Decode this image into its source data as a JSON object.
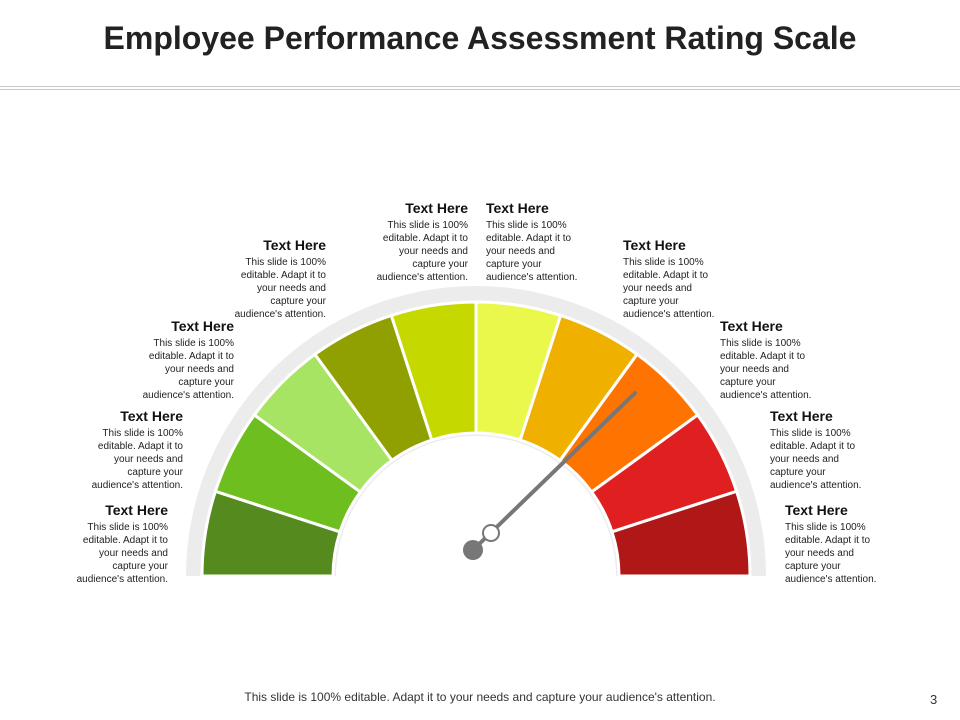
{
  "header": {
    "title": "Employee Performance Assessment Rating Scale"
  },
  "items": [
    {
      "heading": "Text Here",
      "text": "This slide is 100% editable. Adapt it to your needs and capture your audience's attention."
    },
    {
      "heading": "Text Here",
      "text": "This slide is 100% editable. Adapt it to your needs and capture your audience's attention."
    },
    {
      "heading": "Text Here",
      "text": "This slide is 100% editable. Adapt it to your needs and capture your audience's attention."
    },
    {
      "heading": "Text Here",
      "text": "This slide is 100% editable. Adapt it to your needs and capture your audience's attention."
    },
    {
      "heading": "Text Here",
      "text": "This slide is 100% editable. Adapt it to your needs and capture your audience's attention."
    },
    {
      "heading": "Text Here",
      "text": "This slide is 100% editable. Adapt it to your needs and capture your audience's attention."
    },
    {
      "heading": "Text Here",
      "text": "This slide is 100% editable. Adapt it to your needs and capture your audience's attention."
    },
    {
      "heading": "Text Here",
      "text": "This slide is 100% editable. Adapt it to your needs and capture your audience's attention."
    },
    {
      "heading": "Text Here",
      "text": "This slide is 100% editable. Adapt it to your needs and capture your audience's attention."
    },
    {
      "heading": "Text Here",
      "text": "This slide is 100% editable. Adapt it to your needs and capture your audience's attention."
    }
  ],
  "footer": {
    "text": "This slide is 100% editable. Adapt it to your needs and capture your audience's attention.",
    "page": "3"
  }
}
